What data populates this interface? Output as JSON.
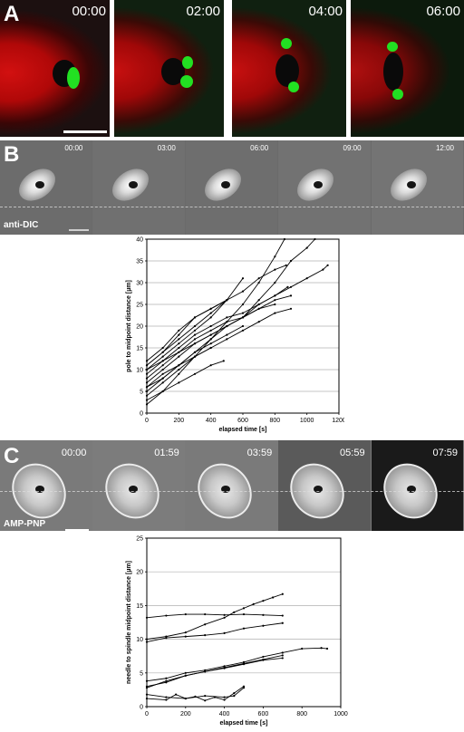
{
  "panelA": {
    "letter": "A",
    "timestamps": [
      "00:00",
      "02:00",
      "04:00",
      "06:00"
    ],
    "colors": {
      "spindle": "#e01010",
      "poles": "#22e022"
    }
  },
  "panelB": {
    "letter": "B",
    "timestamps": [
      "00:00",
      "03:00",
      "06:00",
      "09:00",
      "12:00"
    ],
    "condition": "anti-DIC"
  },
  "panelC": {
    "letter": "C",
    "timestamps": [
      "00:00",
      "01:59",
      "03:59",
      "05:59",
      "07:59"
    ],
    "condition": "AMP-PNP"
  },
  "chart_data": [
    {
      "type": "line",
      "xlabel": "elapsed time [s]",
      "ylabel": "pole to midpoint distance [µm]",
      "xlim": [
        0,
        1200
      ],
      "ylim": [
        0,
        40
      ],
      "xticks": [
        0,
        200,
        400,
        600,
        800,
        1000,
        1200
      ],
      "yticks": [
        0,
        5,
        10,
        15,
        20,
        25,
        30,
        35,
        40
      ],
      "grid": "horizontal",
      "series": [
        {
          "x": [
            0,
            100,
            200,
            300,
            400,
            500,
            600,
            700,
            800,
            860
          ],
          "y": [
            2,
            5,
            9,
            13,
            17,
            21,
            25,
            30,
            36,
            40
          ]
        },
        {
          "x": [
            0,
            100,
            200,
            300,
            400,
            500,
            600,
            700,
            800,
            900,
            1000,
            1050
          ],
          "y": [
            6,
            8,
            11,
            14,
            17,
            20,
            22,
            26,
            30,
            35,
            38,
            40
          ]
        },
        {
          "x": [
            0,
            100,
            200,
            300,
            400,
            500,
            600,
            700,
            800,
            900,
            1000,
            1100,
            1130
          ],
          "y": [
            10,
            12,
            14,
            16,
            18,
            20,
            22,
            25,
            27,
            29,
            31,
            33,
            34
          ]
        },
        {
          "x": [
            0,
            100,
            200,
            300,
            400,
            500,
            600,
            700,
            800,
            870
          ],
          "y": [
            11,
            14,
            17,
            20,
            23,
            26,
            28,
            31,
            33,
            34
          ]
        },
        {
          "x": [
            0,
            100,
            200,
            300,
            400,
            500,
            600,
            700,
            800,
            900
          ],
          "y": [
            7,
            10,
            13,
            16,
            18,
            20,
            22,
            24,
            26,
            27
          ]
        },
        {
          "x": [
            0,
            100,
            200,
            300,
            400,
            500,
            600,
            700,
            800,
            900
          ],
          "y": [
            5,
            8,
            11,
            13,
            15,
            17,
            19,
            21,
            23,
            24
          ]
        },
        {
          "x": [
            0,
            100,
            200,
            300,
            400,
            500,
            600,
            700,
            800,
            880
          ],
          "y": [
            9,
            12,
            15,
            18,
            20,
            22,
            23,
            25,
            27,
            29
          ]
        },
        {
          "x": [
            0,
            100,
            200,
            300,
            400,
            500,
            600,
            700,
            800
          ],
          "y": [
            8,
            11,
            14,
            17,
            19,
            21,
            22,
            24,
            25
          ]
        },
        {
          "x": [
            0,
            100,
            200,
            300,
            400,
            500,
            600
          ],
          "y": [
            10,
            13,
            16,
            19,
            22,
            26,
            31
          ]
        },
        {
          "x": [
            0,
            100,
            200,
            300,
            400,
            500
          ],
          "y": [
            11,
            14,
            18,
            22,
            24,
            26
          ]
        },
        {
          "x": [
            0,
            100,
            200,
            300,
            400,
            500
          ],
          "y": [
            12,
            15,
            19,
            22,
            24,
            26
          ]
        },
        {
          "x": [
            0,
            100,
            200,
            300,
            400,
            480
          ],
          "y": [
            3,
            5,
            7,
            9,
            11,
            12
          ]
        },
        {
          "x": [
            0,
            100,
            200,
            300,
            400
          ],
          "y": [
            4,
            7,
            10,
            13,
            15
          ]
        },
        {
          "x": [
            0,
            100,
            200,
            300,
            400,
            500,
            600
          ],
          "y": [
            6,
            9,
            11,
            14,
            16,
            18,
            20
          ]
        }
      ]
    },
    {
      "type": "line",
      "xlabel": "elapsed time [s]",
      "ylabel": "needle to spindle midpoint distance [µm]",
      "xlim": [
        0,
        1000
      ],
      "ylim": [
        0,
        25
      ],
      "xticks": [
        0,
        200,
        400,
        600,
        800,
        1000
      ],
      "yticks": [
        0,
        5,
        10,
        15,
        20,
        25
      ],
      "grid": "horizontal",
      "series": [
        {
          "x": [
            0,
            100,
            200,
            300,
            400,
            500,
            600,
            700
          ],
          "y": [
            13.2,
            13.5,
            13.7,
            13.7,
            13.6,
            13.7,
            13.6,
            13.5
          ]
        },
        {
          "x": [
            0,
            100,
            200,
            300,
            400,
            450,
            500,
            550,
            600,
            650,
            700
          ],
          "y": [
            10,
            10.4,
            11,
            12.2,
            13.2,
            14,
            14.6,
            15.2,
            15.7,
            16.2,
            16.7
          ]
        },
        {
          "x": [
            0,
            100,
            200,
            300,
            400,
            500,
            600,
            700
          ],
          "y": [
            9.6,
            10.2,
            10.4,
            10.6,
            10.9,
            11.6,
            12.0,
            12.4
          ]
        },
        {
          "x": [
            0,
            100,
            200,
            300,
            400,
            500,
            600,
            700,
            800,
            900,
            930
          ],
          "y": [
            3.8,
            4.2,
            5.0,
            5.4,
            6.0,
            6.6,
            7.4,
            8.0,
            8.6,
            8.7,
            8.6
          ]
        },
        {
          "x": [
            0,
            100,
            200,
            300,
            400,
            500,
            600,
            700
          ],
          "y": [
            2.8,
            3.8,
            4.6,
            5.2,
            5.8,
            6.4,
            7.0,
            7.6
          ]
        },
        {
          "x": [
            0,
            100,
            200,
            300,
            400,
            500,
            600,
            700
          ],
          "y": [
            3.0,
            3.6,
            4.6,
            5.2,
            5.7,
            6.3,
            6.9,
            7.2
          ]
        },
        {
          "x": [
            0,
            100,
            200,
            300,
            400,
            450,
            500
          ],
          "y": [
            1.8,
            1.4,
            1.2,
            1.6,
            1.4,
            1.6,
            2.8
          ]
        },
        {
          "x": [
            0,
            100,
            150,
            200,
            250,
            300,
            350,
            400,
            450,
            500
          ],
          "y": [
            1.2,
            1.0,
            1.8,
            1.2,
            1.5,
            0.9,
            1.4,
            1.0,
            2.0,
            3.0
          ]
        }
      ]
    }
  ]
}
